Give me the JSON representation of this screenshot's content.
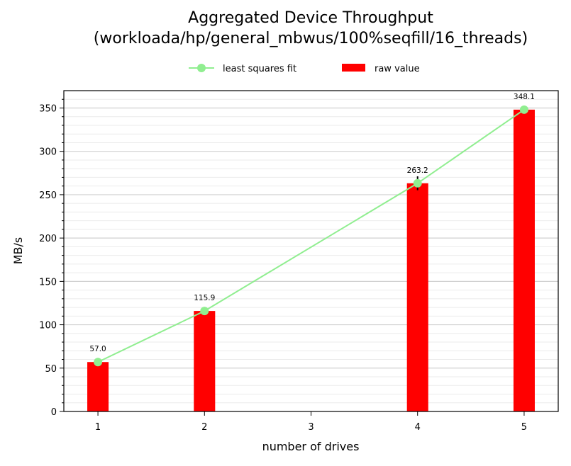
{
  "chart_data": {
    "type": "bar",
    "title": "Aggregated Device Throughput",
    "subtitle": "(workloada/hp/general_mbwus/100%seqfill/16_threads)",
    "xlabel": "number of drives",
    "ylabel": "MB/s",
    "x_ticks": [
      1,
      2,
      3,
      4,
      5
    ],
    "y_ticks": [
      0,
      50,
      100,
      150,
      200,
      250,
      300,
      350
    ],
    "xlim": [
      0.68,
      5.32
    ],
    "ylim": [
      0,
      370
    ],
    "grid": "horizontal major and minor",
    "legend_placement": "top-center",
    "series": [
      {
        "name": "raw value",
        "kind": "bar",
        "color": "#ff0000",
        "x": [
          1,
          2,
          4,
          5
        ],
        "values": [
          57.0,
          115.9,
          263.2,
          348.1
        ],
        "labels": [
          "57.0",
          "115.9",
          "263.2",
          "348.1"
        ],
        "error": [
          0,
          0,
          8,
          0
        ]
      },
      {
        "name": "least squares fit",
        "kind": "line",
        "color": "#90ee90",
        "x": [
          1,
          2,
          4,
          5
        ],
        "values": [
          57.0,
          115.9,
          263.2,
          348.1
        ]
      }
    ]
  }
}
